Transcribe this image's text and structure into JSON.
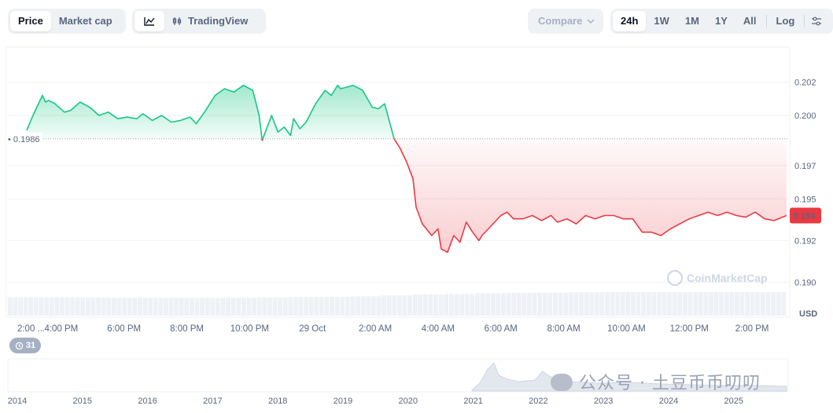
{
  "toolbar": {
    "price_tab": "Price",
    "market_cap_tab": "Market cap",
    "tradingview": "TradingView",
    "compare": "Compare",
    "ranges": [
      "24h",
      "1W",
      "1M",
      "1Y",
      "All"
    ],
    "log": "Log",
    "line_icon": "line-chart-icon",
    "candle_icon": "candlestick-icon",
    "settings_icon": "settings-sliders-icon"
  },
  "badge": {
    "count": "31",
    "icon": "history-icon"
  },
  "watermark": {
    "site": "CoinMarketCap",
    "text": "公众号 · 土豆币币叨叨"
  },
  "colors": {
    "up": "#16c784",
    "down": "#ea3943",
    "current_badge": "#ea3943"
  },
  "chart_data": {
    "type": "area",
    "baseline": 0.1986,
    "baseline_label": "0.1986",
    "current_label": "0.194",
    "y_ticks": [
      {
        "v": 0.202,
        "label": "0.202"
      },
      {
        "v": 0.2,
        "label": "0.200"
      },
      {
        "v": 0.197,
        "label": "0.197"
      },
      {
        "v": 0.195,
        "label": "0.195"
      },
      {
        "v": 0.1925,
        "label": "0.192"
      },
      {
        "v": 0.19,
        "label": "0.190"
      }
    ],
    "ylim": [
      0.188,
      0.204
    ],
    "ylabel": "USD",
    "x_tick_labels": [
      "2:00 ...",
      "4:00 PM",
      "6:00 PM",
      "8:00 PM",
      "10:00 PM",
      "29 Oct",
      "2:00 AM",
      "4:00 AM",
      "6:00 AM",
      "8:00 AM",
      "10:00 AM",
      "12:00 PM",
      "2:00 PM"
    ],
    "x_tick_hours": [
      0.3,
      1.7,
      3.7,
      5.7,
      7.7,
      9.7,
      11.7,
      13.7,
      15.7,
      17.7,
      19.7,
      21.7,
      23.7
    ],
    "xlim_hours": [
      0,
      24.8
    ],
    "series": [
      {
        "hours": [
          0.6,
          0.8,
          1.0,
          1.1,
          1.2,
          1.3,
          1.5,
          1.8,
          2.0,
          2.3,
          2.6,
          2.9,
          3.2,
          3.5,
          3.8,
          4.1,
          4.3,
          4.6,
          4.9,
          5.2,
          5.5,
          5.8,
          6.0,
          6.3,
          6.6,
          6.9,
          7.2,
          7.5,
          7.8,
          8.0,
          8.1,
          8.3,
          8.4,
          8.6,
          8.8,
          9.0,
          9.1,
          9.3,
          9.5,
          9.8,
          10.1,
          10.3,
          10.5,
          10.6,
          10.8,
          11.0,
          11.3,
          11.6,
          11.8,
          12.0,
          12.3,
          12.5,
          12.7,
          12.9,
          13.0,
          13.2,
          13.5,
          13.7,
          13.8,
          14.0,
          14.2,
          14.4,
          14.6,
          14.8,
          15.0,
          15.1,
          15.3,
          15.5,
          15.7,
          15.9,
          16.1,
          16.4,
          16.7,
          17.0,
          17.3,
          17.5,
          17.8,
          18.1,
          18.4,
          18.7,
          19.0,
          19.3,
          19.6,
          19.9,
          20.2,
          20.5,
          20.8,
          21.1,
          21.4,
          21.7,
          22.0,
          22.3,
          22.6,
          22.9,
          23.2,
          23.5,
          23.8,
          24.1,
          24.4,
          24.8
        ],
        "values": [
          0.1991,
          0.2,
          0.2008,
          0.2012,
          0.2008,
          0.2009,
          0.2007,
          0.2002,
          0.2003,
          0.2008,
          0.2005,
          0.2,
          0.2002,
          0.1998,
          0.1999,
          0.1998,
          0.2001,
          0.1997,
          0.2,
          0.1996,
          0.1997,
          0.1999,
          0.1995,
          0.2003,
          0.2012,
          0.2016,
          0.2014,
          0.2018,
          0.2015,
          0.2,
          0.1985,
          0.1995,
          0.2,
          0.199,
          0.1993,
          0.1988,
          0.1998,
          0.1992,
          0.1996,
          0.2007,
          0.2015,
          0.2012,
          0.2018,
          0.2016,
          0.2017,
          0.2018,
          0.2015,
          0.2005,
          0.2004,
          0.2007,
          0.1986,
          0.198,
          0.1972,
          0.1962,
          0.1945,
          0.1935,
          0.1928,
          0.1932,
          0.192,
          0.1918,
          0.1928,
          0.1924,
          0.1936,
          0.193,
          0.1925,
          0.1928,
          0.1932,
          0.1936,
          0.194,
          0.1942,
          0.1938,
          0.1938,
          0.194,
          0.1937,
          0.194,
          0.1936,
          0.1938,
          0.1935,
          0.194,
          0.1938,
          0.194,
          0.194,
          0.1938,
          0.1938,
          0.193,
          0.193,
          0.1928,
          0.1932,
          0.1935,
          0.1938,
          0.194,
          0.1942,
          0.194,
          0.1942,
          0.194,
          0.1939,
          0.1942,
          0.1938,
          0.1937,
          0.194
        ]
      }
    ],
    "volume_levels": [
      0.78,
      0.78,
      0.77,
      0.76,
      0.76,
      0.76,
      0.75,
      0.76,
      0.77,
      0.79,
      0.8,
      0.82,
      0.86,
      0.9,
      0.92,
      0.95,
      0.97,
      0.98,
      0.99,
      1.0,
      1.0,
      1.0,
      1.0,
      1.0,
      1.0
    ],
    "history_axis": {
      "years": [
        "2014",
        "2015",
        "2016",
        "2017",
        "2018",
        "2019",
        "2020",
        "2021",
        "2022",
        "2023",
        "2024",
        "2025"
      ]
    }
  }
}
